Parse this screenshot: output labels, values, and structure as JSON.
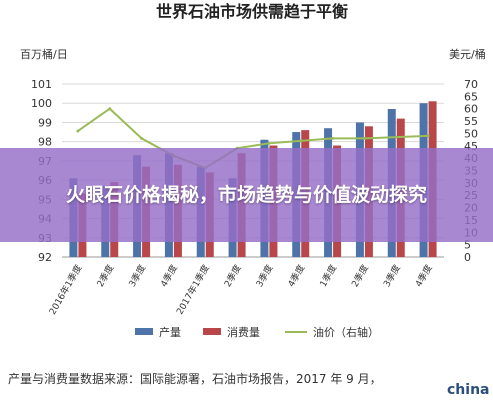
{
  "chart_data": {
    "type": "bar",
    "title": "世界石油市场供需趋于平衡",
    "ylabel": "百万桶/日",
    "y2label": "美元/桶",
    "ylim": [
      92,
      101
    ],
    "y2lim": [
      0,
      70
    ],
    "yticks": [
      92,
      93,
      94,
      95,
      96,
      97,
      98,
      99,
      100,
      101
    ],
    "y2ticks": [
      0,
      5,
      10,
      15,
      20,
      25,
      30,
      35,
      40,
      45,
      50,
      55,
      60,
      65,
      70
    ],
    "categories": [
      "2016年1季度",
      "2季度",
      "3季度",
      "4季度",
      "2017年1季度",
      "2季度",
      "3季度",
      "4季度",
      "1季度",
      "2季度",
      "3季度",
      "4季度"
    ],
    "series": [
      {
        "name": "产量",
        "kind": "bar",
        "axis": "left",
        "color": "#4e73a8",
        "values": [
          96.1,
          95.7,
          97.3,
          97.4,
          96.7,
          96.1,
          98.1,
          98.5,
          98.7,
          99.0,
          99.7,
          100.0
        ]
      },
      {
        "name": "消费量",
        "kind": "bar",
        "axis": "left",
        "color": "#b9474a",
        "values": [
          95.3,
          95.9,
          96.7,
          96.8,
          96.4,
          97.4,
          97.8,
          98.6,
          97.8,
          98.8,
          99.2,
          100.1
        ]
      },
      {
        "name": "油价（右轴）",
        "kind": "line",
        "axis": "right",
        "color": "#9bbb59",
        "values": [
          51,
          60,
          48,
          41,
          36,
          44,
          46,
          47,
          48,
          48,
          48.5,
          49
        ]
      }
    ],
    "legend": "bottom",
    "grid": true
  },
  "source_note": "产量与消费量数据来源：国际能源署，石油市场报告，2017 年 9 月，",
  "banner_text": "火眼石价格揭秘，市场趋势与价值波动探究",
  "watermark": "china"
}
